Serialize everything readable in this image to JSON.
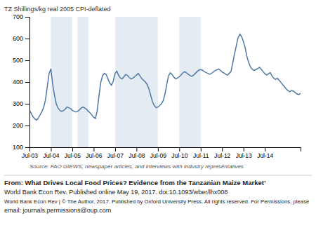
{
  "chart_data": {
    "type": "line",
    "ylabel": "TZ Shillings/kg real 2005 CPI-deflated",
    "source": "Source: FAO GIEWS, newspaper articles, and interviews with industry representatives",
    "footer": [
      "From: What Drives Local Food Prices? Evidence from the Tanzanian Maize Market’",
      "World Bank Econ Rev. Published online  May 19, 2017. doi:10.1093/wber/lhx008",
      "World Bank Econ Rev | © The Author, 2017. Published by Oxford University Press. All rights reserved. For Permissions, please",
      "email: journals.permissions@oup.com"
    ],
    "x": [
      0,
      1,
      2,
      3,
      4,
      5,
      6,
      7,
      8,
      9,
      10,
      11,
      12,
      13,
      14,
      15,
      16,
      17,
      18,
      19,
      20,
      21,
      22,
      23,
      24,
      25,
      26,
      27,
      28,
      29,
      30,
      31,
      32,
      33,
      34,
      35,
      36,
      37,
      38,
      39,
      40,
      41,
      42,
      43,
      44,
      45,
      46,
      47,
      48,
      49,
      50,
      51,
      52,
      53,
      54,
      55,
      56,
      57,
      58,
      59,
      60,
      61,
      62,
      63,
      64,
      65,
      66,
      67,
      68,
      69,
      70,
      71,
      72,
      73,
      74,
      75,
      76,
      77,
      78,
      79,
      80,
      81,
      82,
      83,
      84,
      85,
      86,
      87,
      88,
      89,
      90,
      91,
      92,
      93,
      94,
      95,
      96,
      97,
      98,
      99,
      100,
      101,
      102,
      103,
      104,
      105,
      106,
      107,
      108,
      109,
      110,
      111,
      112,
      113,
      114,
      115,
      116,
      117,
      118,
      119,
      120,
      121,
      122,
      123,
      124,
      125,
      126,
      127,
      128,
      129,
      130,
      131,
      132,
      133,
      134,
      135,
      136,
      137,
      138,
      139,
      140,
      141,
      142,
      143,
      144,
      145,
      146,
      147,
      148,
      149,
      150,
      151,
      152
    ],
    "values": [
      270,
      255,
      240,
      230,
      225,
      235,
      250,
      265,
      285,
      320,
      380,
      440,
      460,
      390,
      340,
      300,
      280,
      270,
      265,
      268,
      275,
      285,
      282,
      278,
      270,
      265,
      262,
      265,
      272,
      280,
      285,
      280,
      275,
      265,
      258,
      248,
      238,
      232,
      270,
      340,
      400,
      430,
      440,
      435,
      415,
      395,
      385,
      405,
      440,
      450,
      430,
      418,
      415,
      425,
      435,
      430,
      420,
      415,
      418,
      425,
      432,
      440,
      428,
      415,
      408,
      400,
      388,
      368,
      338,
      308,
      292,
      282,
      285,
      292,
      300,
      315,
      345,
      390,
      430,
      442,
      435,
      422,
      415,
      418,
      425,
      432,
      442,
      448,
      442,
      436,
      430,
      426,
      432,
      440,
      448,
      455,
      458,
      454,
      448,
      444,
      440,
      436,
      440,
      446,
      452,
      456,
      460,
      454,
      446,
      442,
      436,
      432,
      440,
      448,
      488,
      530,
      568,
      605,
      620,
      608,
      585,
      555,
      515,
      488,
      468,
      458,
      453,
      458,
      462,
      468,
      458,
      448,
      438,
      432,
      438,
      443,
      428,
      418,
      412,
      418,
      408,
      398,
      388,
      378,
      368,
      360,
      355,
      362,
      358,
      352,
      345,
      342,
      348
    ],
    "shaded_regions": [
      [
        12,
        24
      ],
      [
        27,
        33
      ],
      [
        48,
        72
      ],
      [
        84,
        96
      ]
    ],
    "xlim": [
      0,
      152
    ],
    "xticks": [
      {
        "value": 0,
        "label": "Jul-03"
      },
      {
        "value": 12,
        "label": "Jul-04"
      },
      {
        "value": 24,
        "label": "Jul-05"
      },
      {
        "value": 36,
        "label": "Jul-06"
      },
      {
        "value": 48,
        "label": "Jul-07"
      },
      {
        "value": 60,
        "label": "Jul-08"
      },
      {
        "value": 72,
        "label": "Jul-09"
      },
      {
        "value": 84,
        "label": "Jul-10"
      },
      {
        "value": 96,
        "label": "Jul-11"
      },
      {
        "value": 108,
        "label": "Jul-12"
      },
      {
        "value": 120,
        "label": "Jul-13"
      },
      {
        "value": 132,
        "label": "Jul-14"
      }
    ],
    "ylim": [
      100,
      700
    ],
    "yticks": [
      100,
      200,
      300,
      400,
      500,
      600,
      700
    ]
  }
}
